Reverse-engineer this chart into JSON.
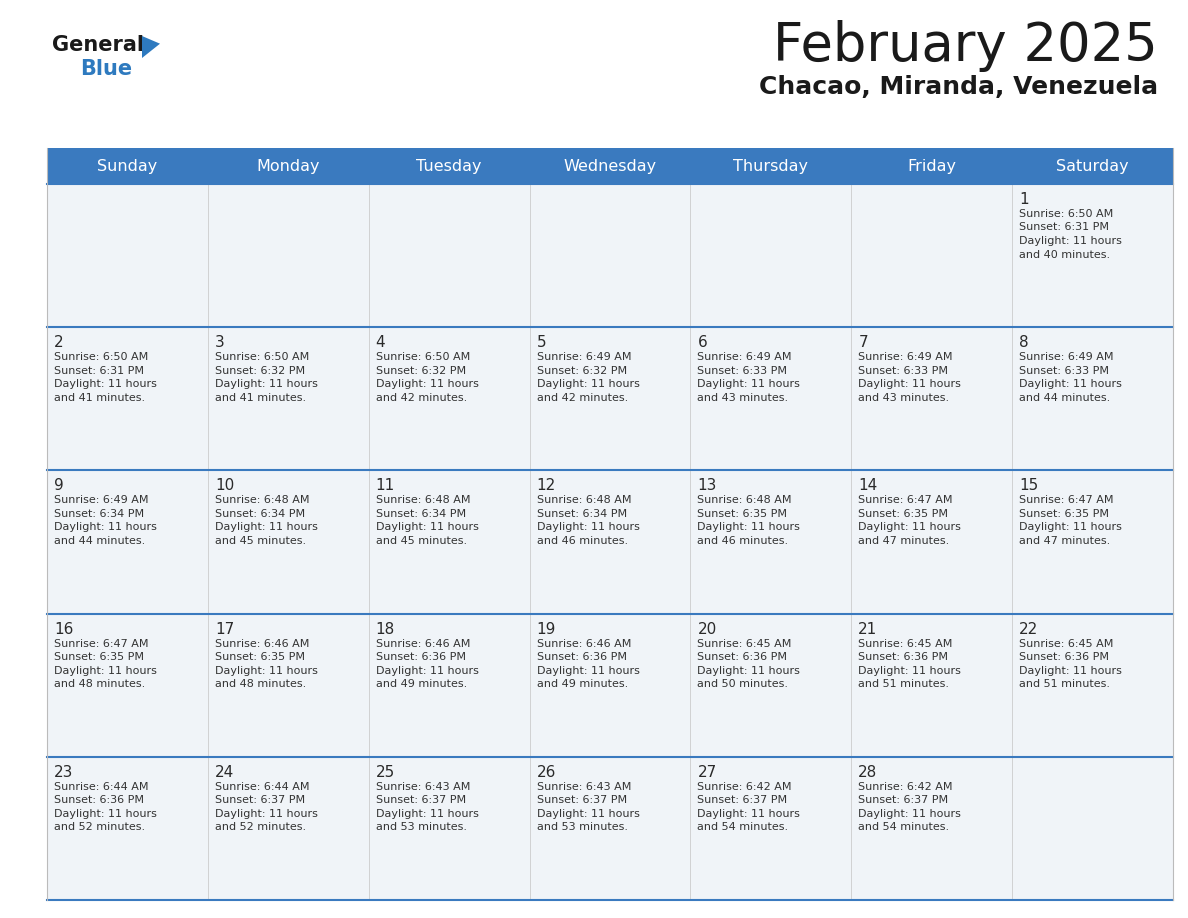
{
  "title": "February 2025",
  "subtitle": "Chacao, Miranda, Venezuela",
  "header_bg": "#3a7abf",
  "header_text_color": "#ffffff",
  "cell_bg": "#f0f4f8",
  "day_headers": [
    "Sunday",
    "Monday",
    "Tuesday",
    "Wednesday",
    "Thursday",
    "Friday",
    "Saturday"
  ],
  "title_color": "#1a1a1a",
  "subtitle_color": "#1a1a1a",
  "day_number_color": "#2a2a2a",
  "cell_text_color": "#333333",
  "divider_color": "#3a7abf",
  "logo_general_color": "#1a1a1a",
  "logo_blue_color": "#2e7abf",
  "calendar_data": [
    [
      null,
      null,
      null,
      null,
      null,
      null,
      {
        "day": 1,
        "sunrise": "6:50 AM",
        "sunset": "6:31 PM",
        "daylight_min": "40 minutes."
      }
    ],
    [
      {
        "day": 2,
        "sunrise": "6:50 AM",
        "sunset": "6:31 PM",
        "daylight_min": "41 minutes."
      },
      {
        "day": 3,
        "sunrise": "6:50 AM",
        "sunset": "6:32 PM",
        "daylight_min": "41 minutes."
      },
      {
        "day": 4,
        "sunrise": "6:50 AM",
        "sunset": "6:32 PM",
        "daylight_min": "42 minutes."
      },
      {
        "day": 5,
        "sunrise": "6:49 AM",
        "sunset": "6:32 PM",
        "daylight_min": "42 minutes."
      },
      {
        "day": 6,
        "sunrise": "6:49 AM",
        "sunset": "6:33 PM",
        "daylight_min": "43 minutes."
      },
      {
        "day": 7,
        "sunrise": "6:49 AM",
        "sunset": "6:33 PM",
        "daylight_min": "43 minutes."
      },
      {
        "day": 8,
        "sunrise": "6:49 AM",
        "sunset": "6:33 PM",
        "daylight_min": "44 minutes."
      }
    ],
    [
      {
        "day": 9,
        "sunrise": "6:49 AM",
        "sunset": "6:34 PM",
        "daylight_min": "44 minutes."
      },
      {
        "day": 10,
        "sunrise": "6:48 AM",
        "sunset": "6:34 PM",
        "daylight_min": "45 minutes."
      },
      {
        "day": 11,
        "sunrise": "6:48 AM",
        "sunset": "6:34 PM",
        "daylight_min": "45 minutes."
      },
      {
        "day": 12,
        "sunrise": "6:48 AM",
        "sunset": "6:34 PM",
        "daylight_min": "46 minutes."
      },
      {
        "day": 13,
        "sunrise": "6:48 AM",
        "sunset": "6:35 PM",
        "daylight_min": "46 minutes."
      },
      {
        "day": 14,
        "sunrise": "6:47 AM",
        "sunset": "6:35 PM",
        "daylight_min": "47 minutes."
      },
      {
        "day": 15,
        "sunrise": "6:47 AM",
        "sunset": "6:35 PM",
        "daylight_min": "47 minutes."
      }
    ],
    [
      {
        "day": 16,
        "sunrise": "6:47 AM",
        "sunset": "6:35 PM",
        "daylight_min": "48 minutes."
      },
      {
        "day": 17,
        "sunrise": "6:46 AM",
        "sunset": "6:35 PM",
        "daylight_min": "48 minutes."
      },
      {
        "day": 18,
        "sunrise": "6:46 AM",
        "sunset": "6:36 PM",
        "daylight_min": "49 minutes."
      },
      {
        "day": 19,
        "sunrise": "6:46 AM",
        "sunset": "6:36 PM",
        "daylight_min": "49 minutes."
      },
      {
        "day": 20,
        "sunrise": "6:45 AM",
        "sunset": "6:36 PM",
        "daylight_min": "50 minutes."
      },
      {
        "day": 21,
        "sunrise": "6:45 AM",
        "sunset": "6:36 PM",
        "daylight_min": "51 minutes."
      },
      {
        "day": 22,
        "sunrise": "6:45 AM",
        "sunset": "6:36 PM",
        "daylight_min": "51 minutes."
      }
    ],
    [
      {
        "day": 23,
        "sunrise": "6:44 AM",
        "sunset": "6:36 PM",
        "daylight_min": "52 minutes."
      },
      {
        "day": 24,
        "sunrise": "6:44 AM",
        "sunset": "6:37 PM",
        "daylight_min": "52 minutes."
      },
      {
        "day": 25,
        "sunrise": "6:43 AM",
        "sunset": "6:37 PM",
        "daylight_min": "53 minutes."
      },
      {
        "day": 26,
        "sunrise": "6:43 AM",
        "sunset": "6:37 PM",
        "daylight_min": "53 minutes."
      },
      {
        "day": 27,
        "sunrise": "6:42 AM",
        "sunset": "6:37 PM",
        "daylight_min": "54 minutes."
      },
      {
        "day": 28,
        "sunrise": "6:42 AM",
        "sunset": "6:37 PM",
        "daylight_min": "54 minutes."
      },
      null
    ]
  ]
}
